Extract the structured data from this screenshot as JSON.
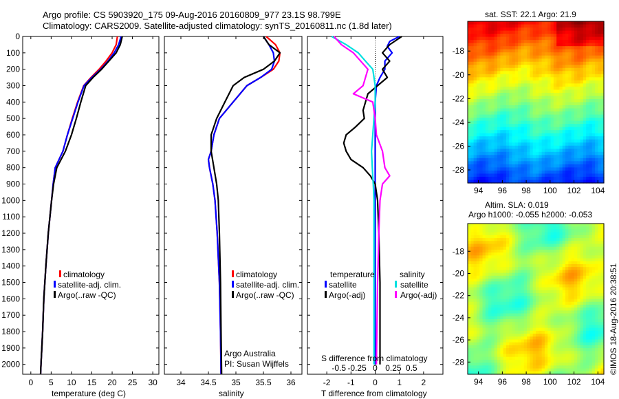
{
  "header": {
    "line1": "Argo profile: CS 5903920_175 09-Aug-2016 20160809_977 23.1S 98.799E",
    "line2": "Climatology: CARS2009. Satellite-adjusted climatology: synTS_20160811.nc (1.8d later)"
  },
  "colors": {
    "climatology": "#ff0000",
    "satellite": "#0000ff",
    "argo": "#000000",
    "sat_salinity": "#00e0e0",
    "argo_salinity": "#ff00ff"
  },
  "depth_ticks": [
    "0",
    "100",
    "200",
    "300",
    "400",
    "500",
    "600",
    "700",
    "800",
    "900",
    "1000",
    "1100",
    "1200",
    "1300",
    "1400",
    "1500",
    "1600",
    "1700",
    "1800",
    "1900",
    "2000"
  ],
  "chart_data": [
    {
      "type": "line",
      "xlabel": "temperature (deg C)",
      "xlim": [
        -2,
        31.5
      ],
      "ylim": [
        0,
        2060
      ],
      "xticks": [
        "0",
        "5",
        "10",
        "15",
        "20",
        "25",
        "30"
      ],
      "legend": [
        "climatology",
        "satellite-adj. clim.",
        "Argo(..raw -QC)"
      ],
      "series": [
        {
          "name": "climatology",
          "depth": [
            0,
            50,
            100,
            150,
            200,
            250,
            300,
            400,
            500,
            600,
            700,
            800,
            900,
            1000,
            1200,
            1400,
            1600,
            1800,
            2000,
            2060
          ],
          "values": [
            21.3,
            21.0,
            20.0,
            18.5,
            16.8,
            14.8,
            13.0,
            11.5,
            10.2,
            9.0,
            7.9,
            6.0,
            5.5,
            5.1,
            4.3,
            3.7,
            3.2,
            2.9,
            2.5,
            2.4
          ]
        },
        {
          "name": "satellite-adj. clim.",
          "depth": [
            0,
            50,
            100,
            150,
            200,
            250,
            300,
            400,
            500,
            600,
            700,
            800,
            900,
            1000,
            1200,
            1400,
            1600,
            1800,
            2000,
            2060
          ],
          "values": [
            22.2,
            21.6,
            20.5,
            19.0,
            17.2,
            15.0,
            13.1,
            11.6,
            10.3,
            9.0,
            7.9,
            6.0,
            5.5,
            5.1,
            4.3,
            3.7,
            3.2,
            2.9,
            2.5,
            2.4
          ]
        },
        {
          "name": "Argo(..raw -QC)",
          "depth": [
            0,
            50,
            100,
            150,
            200,
            250,
            300,
            400,
            500,
            600,
            700,
            800,
            900,
            1000,
            1200,
            1400,
            1600,
            1800,
            2000,
            2060
          ],
          "values": [
            22.5,
            22.0,
            21.0,
            19.2,
            17.4,
            15.3,
            13.5,
            12.3,
            11.2,
            10.0,
            8.5,
            6.4,
            5.6,
            5.1,
            4.3,
            3.7,
            3.2,
            2.9,
            2.5,
            2.4
          ]
        }
      ]
    },
    {
      "type": "line",
      "xlabel": "salinity",
      "xlim": [
        33.7,
        36.2
      ],
      "ylim": [
        0,
        2060
      ],
      "xticks": [
        "34",
        "34.5",
        "35",
        "35.5",
        "36"
      ],
      "legend": [
        "climatology",
        "satellite-adj. clim.",
        "Argo(..raw -QC)"
      ],
      "annotation": [
        "Argo Australia",
        "PI: Susan Wijffels"
      ],
      "series": [
        {
          "name": "climatology",
          "depth": [
            0,
            50,
            100,
            150,
            200,
            250,
            300,
            400,
            500,
            600,
            700,
            750,
            800,
            900,
            1000,
            1200,
            1500,
            1800,
            2060
          ],
          "values": [
            35.55,
            35.72,
            35.8,
            35.78,
            35.68,
            35.45,
            35.2,
            34.95,
            34.7,
            34.6,
            34.55,
            34.5,
            34.52,
            34.58,
            34.62,
            34.66,
            34.7,
            34.72,
            34.73
          ]
        },
        {
          "name": "satellite-adj. clim.",
          "depth": [
            0,
            50,
            100,
            150,
            200,
            250,
            300,
            400,
            500,
            600,
            700,
            750,
            800,
            900,
            1000,
            1200,
            1500,
            1800,
            2060
          ],
          "values": [
            35.5,
            35.6,
            35.68,
            35.7,
            35.65,
            35.45,
            35.2,
            34.95,
            34.7,
            34.6,
            34.55,
            34.5,
            34.52,
            34.58,
            34.62,
            34.66,
            34.7,
            34.72,
            34.73
          ]
        },
        {
          "name": "Argo(..raw -QC)",
          "depth": [
            0,
            50,
            100,
            150,
            200,
            250,
            300,
            400,
            500,
            600,
            700,
            800,
            900,
            1000,
            1200,
            1500,
            1800,
            2060
          ],
          "values": [
            35.5,
            35.6,
            35.8,
            35.7,
            35.5,
            35.15,
            34.95,
            34.8,
            34.65,
            34.55,
            34.55,
            34.6,
            34.65,
            34.68,
            34.7,
            34.72,
            34.73,
            34.74
          ]
        }
      ]
    },
    {
      "type": "line",
      "xlabel": "T difference from climatology",
      "top_xlabel": "S difference from climatology",
      "xlim": [
        -2.8,
        2.8
      ],
      "ylim": [
        0,
        2060
      ],
      "xticks": [
        "-2",
        "-1",
        "0",
        "1",
        "2"
      ],
      "top_xticks": [
        "-0.5",
        "-0.25",
        "0",
        "0.25",
        "0.5"
      ],
      "legend_titles": [
        "temperature",
        "salinity"
      ],
      "legend": [
        "satellite",
        "Argo(-adj)",
        "satellite",
        "Argo(-adj)"
      ],
      "series": [
        {
          "name": "satellite",
          "depth": [
            0,
            30,
            60,
            100,
            150,
            200,
            250,
            300,
            400,
            600,
            800,
            1000,
            1500,
            2000
          ],
          "values": [
            1.0,
            0.6,
            0.5,
            0.7,
            0.4,
            0.4,
            0.2,
            0.05,
            0.0,
            0.0,
            0.0,
            0.0,
            0.0,
            0.0
          ]
        },
        {
          "name": "Argo(-adj)",
          "depth": [
            0,
            50,
            100,
            150,
            200,
            250,
            300,
            350,
            400,
            450,
            500,
            550,
            600,
            650,
            700,
            750,
            800,
            850,
            900,
            1000,
            1200,
            1500,
            1800,
            2000
          ],
          "values": [
            1.1,
            0.6,
            0.3,
            0.6,
            0.3,
            0.5,
            0.1,
            -0.3,
            -0.4,
            -0.5,
            -0.45,
            -0.8,
            -1.2,
            -1.3,
            -1.2,
            -1.0,
            -0.5,
            -0.2,
            0.0,
            0.1,
            0.15,
            0.2,
            0.2,
            0.2
          ]
        },
        {
          "name": "satellite",
          "depth": [
            0,
            50,
            100,
            150,
            200,
            300,
            400,
            500,
            600,
            700,
            800,
            900,
            1000,
            1500,
            2000
          ],
          "values": [
            -1.8,
            -1.2,
            -0.7,
            -0.4,
            -0.1,
            0.0,
            0.0,
            -0.05,
            -0.1,
            -0.15,
            -0.12,
            -0.08,
            -0.05,
            -0.05,
            -0.05
          ]
        },
        {
          "name": "Argo(-adj)",
          "depth": [
            0,
            50,
            100,
            150,
            200,
            300,
            350,
            400,
            500,
            600,
            700,
            800,
            850,
            900,
            1000,
            1200,
            1500,
            2000
          ],
          "values": [
            -1.7,
            -1.4,
            -0.9,
            -0.6,
            -0.3,
            -0.5,
            -0.9,
            -0.1,
            0.0,
            0.05,
            0.3,
            0.4,
            0.6,
            0.3,
            0.2,
            0.15,
            0.1,
            0.05
          ]
        }
      ]
    },
    {
      "type": "heatmap",
      "title": "sat. SST: 22.1  Argo: 21.9",
      "xticks": [
        "94",
        "96",
        "98",
        "100",
        "102",
        "104"
      ],
      "yticks": [
        "-18",
        "-20",
        "-22",
        "-24",
        "-26",
        "-28"
      ],
      "xlim": [
        93.1,
        104.5
      ],
      "ylim": [
        -29.1,
        -15.5
      ],
      "description_rows": [
        "warm",
        "cool"
      ]
    },
    {
      "type": "heatmap",
      "title": "Altim. SLA: 0.019",
      "subtitle": "Argo h1000: -0.055 h2000: -0.053",
      "xticks": [
        "94",
        "96",
        "98",
        "100",
        "102",
        "104"
      ],
      "yticks": [
        "-18",
        "-20",
        "-22",
        "-24",
        "-26",
        "-28"
      ],
      "xlim": [
        93.1,
        104.5
      ],
      "ylim": [
        -29.1,
        -15.5
      ]
    }
  ],
  "stamp": "©IMOS 18-Aug-2016 20:38:51"
}
